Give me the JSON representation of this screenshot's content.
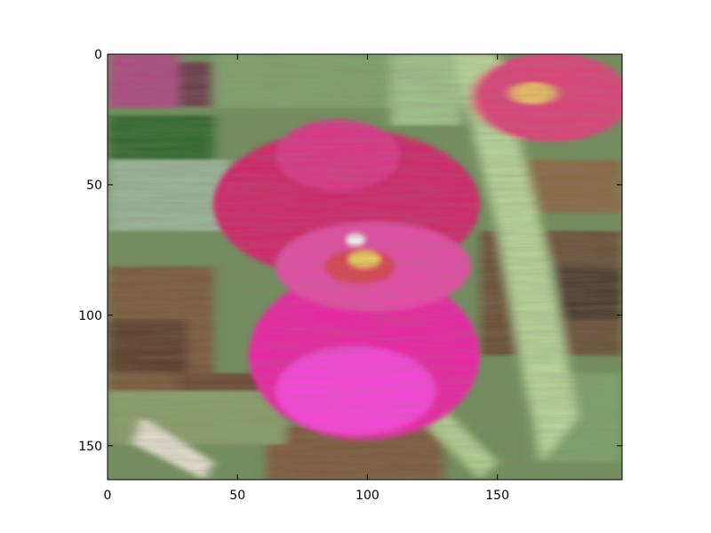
{
  "chart_data": {
    "type": "heatmap",
    "description_kind": "image",
    "title": "",
    "xlabel": "",
    "ylabel": "",
    "image_width": 198,
    "image_height": 163,
    "xlim": [
      0,
      198
    ],
    "ylim": [
      163,
      0
    ],
    "x_ticks": [
      0,
      50,
      100,
      150
    ],
    "y_ticks": [
      0,
      50,
      100,
      150
    ],
    "x_tick_labels": [
      "0",
      "50",
      "100",
      "150"
    ],
    "y_tick_labels": [
      "0",
      "50",
      "100",
      "150"
    ],
    "grid": false,
    "legend": "none"
  }
}
